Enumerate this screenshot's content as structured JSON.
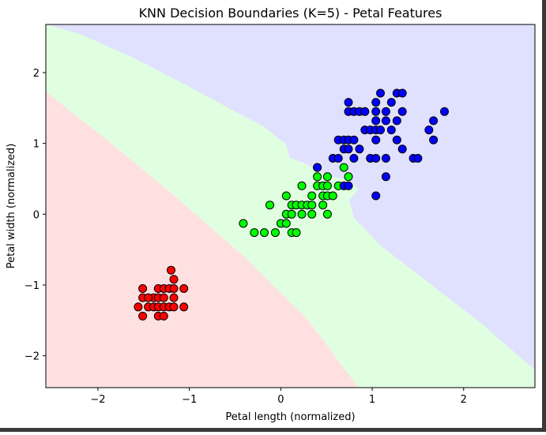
{
  "chart_data": {
    "type": "scatter",
    "title": "KNN Decision Boundaries (K=5) - Petal Features",
    "xlabel": "Petal length (normalized)",
    "ylabel": "Petal width (normalized)",
    "xlim": [
      -2.57,
      2.78
    ],
    "ylim": [
      -2.45,
      2.68
    ],
    "xticks": [
      -2,
      -1,
      0,
      1,
      2
    ],
    "yticks": [
      -2,
      -1,
      0,
      1,
      2
    ],
    "xtick_labels": [
      "−2",
      "−1",
      "0",
      "1",
      "2"
    ],
    "ytick_labels": [
      "−2",
      "−1",
      "0",
      "1",
      "2"
    ],
    "grid": false,
    "regions": [
      {
        "class": 0,
        "color": "#ffe0e0",
        "polygon": [
          [
            -2.57,
            1.73
          ],
          [
            -1.9,
            1.05
          ],
          [
            -1.2,
            0.3
          ],
          [
            -0.4,
            -0.6
          ],
          [
            0.3,
            -1.5
          ],
          [
            0.85,
            -2.45
          ],
          [
            -2.57,
            -2.45
          ]
        ]
      },
      {
        "class": 2,
        "color": "#e0e0ff",
        "polygon": [
          [
            -2.57,
            2.68
          ],
          [
            2.78,
            2.68
          ],
          [
            2.78,
            -2.2
          ],
          [
            2.2,
            -1.55
          ],
          [
            1.6,
            -0.95
          ],
          [
            1.1,
            -0.45
          ],
          [
            0.95,
            -0.25
          ],
          [
            0.8,
            -0.05
          ],
          [
            0.75,
            0.2
          ],
          [
            0.85,
            0.35
          ],
          [
            0.75,
            0.48
          ],
          [
            0.5,
            0.55
          ],
          [
            0.3,
            0.7
          ],
          [
            0.1,
            0.8
          ],
          [
            0.05,
            1.0
          ],
          [
            -0.2,
            1.25
          ],
          [
            -0.5,
            1.45
          ],
          [
            -1.0,
            1.8
          ],
          [
            -1.6,
            2.2
          ],
          [
            -2.2,
            2.55
          ],
          [
            -2.57,
            2.68
          ]
        ]
      }
    ],
    "background_color": "#e0ffe0",
    "series": [
      {
        "color": "#ff0000",
        "points": [
          [
            -1.2,
            -0.79
          ],
          [
            -1.17,
            -0.92
          ],
          [
            -1.34,
            -1.05
          ],
          [
            -1.28,
            -1.05
          ],
          [
            -1.22,
            -1.05
          ],
          [
            -1.17,
            -1.05
          ],
          [
            -1.06,
            -1.05
          ],
          [
            -1.51,
            -1.05
          ],
          [
            -1.51,
            -1.18
          ],
          [
            -1.39,
            -1.18
          ],
          [
            -1.34,
            -1.18
          ],
          [
            -1.28,
            -1.18
          ],
          [
            -1.17,
            -1.18
          ],
          [
            -1.45,
            -1.18
          ],
          [
            -1.56,
            -1.31
          ],
          [
            -1.45,
            -1.31
          ],
          [
            -1.39,
            -1.31
          ],
          [
            -1.34,
            -1.31
          ],
          [
            -1.28,
            -1.31
          ],
          [
            -1.22,
            -1.31
          ],
          [
            -1.17,
            -1.31
          ],
          [
            -1.06,
            -1.31
          ],
          [
            -1.51,
            -1.44
          ],
          [
            -1.34,
            -1.44
          ],
          [
            -1.28,
            -1.44
          ]
        ]
      },
      {
        "color": "#00ff00",
        "points": [
          [
            0.4,
            0.66
          ],
          [
            0.69,
            0.66
          ],
          [
            0.4,
            0.53
          ],
          [
            0.51,
            0.53
          ],
          [
            0.74,
            0.53
          ],
          [
            0.23,
            0.4
          ],
          [
            0.4,
            0.4
          ],
          [
            0.46,
            0.4
          ],
          [
            0.51,
            0.4
          ],
          [
            0.63,
            0.4
          ],
          [
            0.06,
            0.26
          ],
          [
            0.34,
            0.26
          ],
          [
            0.46,
            0.26
          ],
          [
            0.51,
            0.26
          ],
          [
            0.57,
            0.26
          ],
          [
            -0.12,
            0.13
          ],
          [
            0.12,
            0.13
          ],
          [
            0.17,
            0.13
          ],
          [
            0.23,
            0.13
          ],
          [
            0.29,
            0.13
          ],
          [
            0.34,
            0.13
          ],
          [
            0.46,
            0.13
          ],
          [
            0.06,
            0.0
          ],
          [
            0.12,
            0.0
          ],
          [
            0.23,
            0.0
          ],
          [
            0.34,
            0.0
          ],
          [
            0.51,
            0.0
          ],
          [
            -0.41,
            -0.13
          ],
          [
            0.0,
            -0.13
          ],
          [
            0.06,
            -0.13
          ],
          [
            -0.29,
            -0.26
          ],
          [
            -0.18,
            -0.26
          ],
          [
            -0.06,
            -0.26
          ],
          [
            0.12,
            -0.26
          ],
          [
            0.17,
            -0.26
          ]
        ]
      },
      {
        "color": "#0000ff",
        "points": [
          [
            1.09,
            1.71
          ],
          [
            1.27,
            1.71
          ],
          [
            1.33,
            1.71
          ],
          [
            0.74,
            1.58
          ],
          [
            1.04,
            1.58
          ],
          [
            1.21,
            1.58
          ],
          [
            0.74,
            1.45
          ],
          [
            0.8,
            1.45
          ],
          [
            0.86,
            1.45
          ],
          [
            0.92,
            1.45
          ],
          [
            1.04,
            1.45
          ],
          [
            1.15,
            1.45
          ],
          [
            1.33,
            1.45
          ],
          [
            1.79,
            1.45
          ],
          [
            1.04,
            1.32
          ],
          [
            1.15,
            1.32
          ],
          [
            1.27,
            1.32
          ],
          [
            1.67,
            1.32
          ],
          [
            0.92,
            1.19
          ],
          [
            0.98,
            1.19
          ],
          [
            1.04,
            1.19
          ],
          [
            1.09,
            1.19
          ],
          [
            1.21,
            1.19
          ],
          [
            1.62,
            1.19
          ],
          [
            0.63,
            1.05
          ],
          [
            0.69,
            1.05
          ],
          [
            0.74,
            1.05
          ],
          [
            0.8,
            1.05
          ],
          [
            1.04,
            1.05
          ],
          [
            1.67,
            1.05
          ],
          [
            1.27,
            1.05
          ],
          [
            0.69,
            0.92
          ],
          [
            0.74,
            0.92
          ],
          [
            0.86,
            0.92
          ],
          [
            1.33,
            0.92
          ],
          [
            0.57,
            0.79
          ],
          [
            0.63,
            0.79
          ],
          [
            0.8,
            0.79
          ],
          [
            0.98,
            0.79
          ],
          [
            1.04,
            0.79
          ],
          [
            1.15,
            0.79
          ],
          [
            1.45,
            0.79
          ],
          [
            1.5,
            0.79
          ],
          [
            1.15,
            0.53
          ],
          [
            0.4,
            0.66
          ],
          [
            0.69,
            0.4
          ],
          [
            0.74,
            0.4
          ],
          [
            1.04,
            0.26
          ]
        ]
      }
    ]
  }
}
